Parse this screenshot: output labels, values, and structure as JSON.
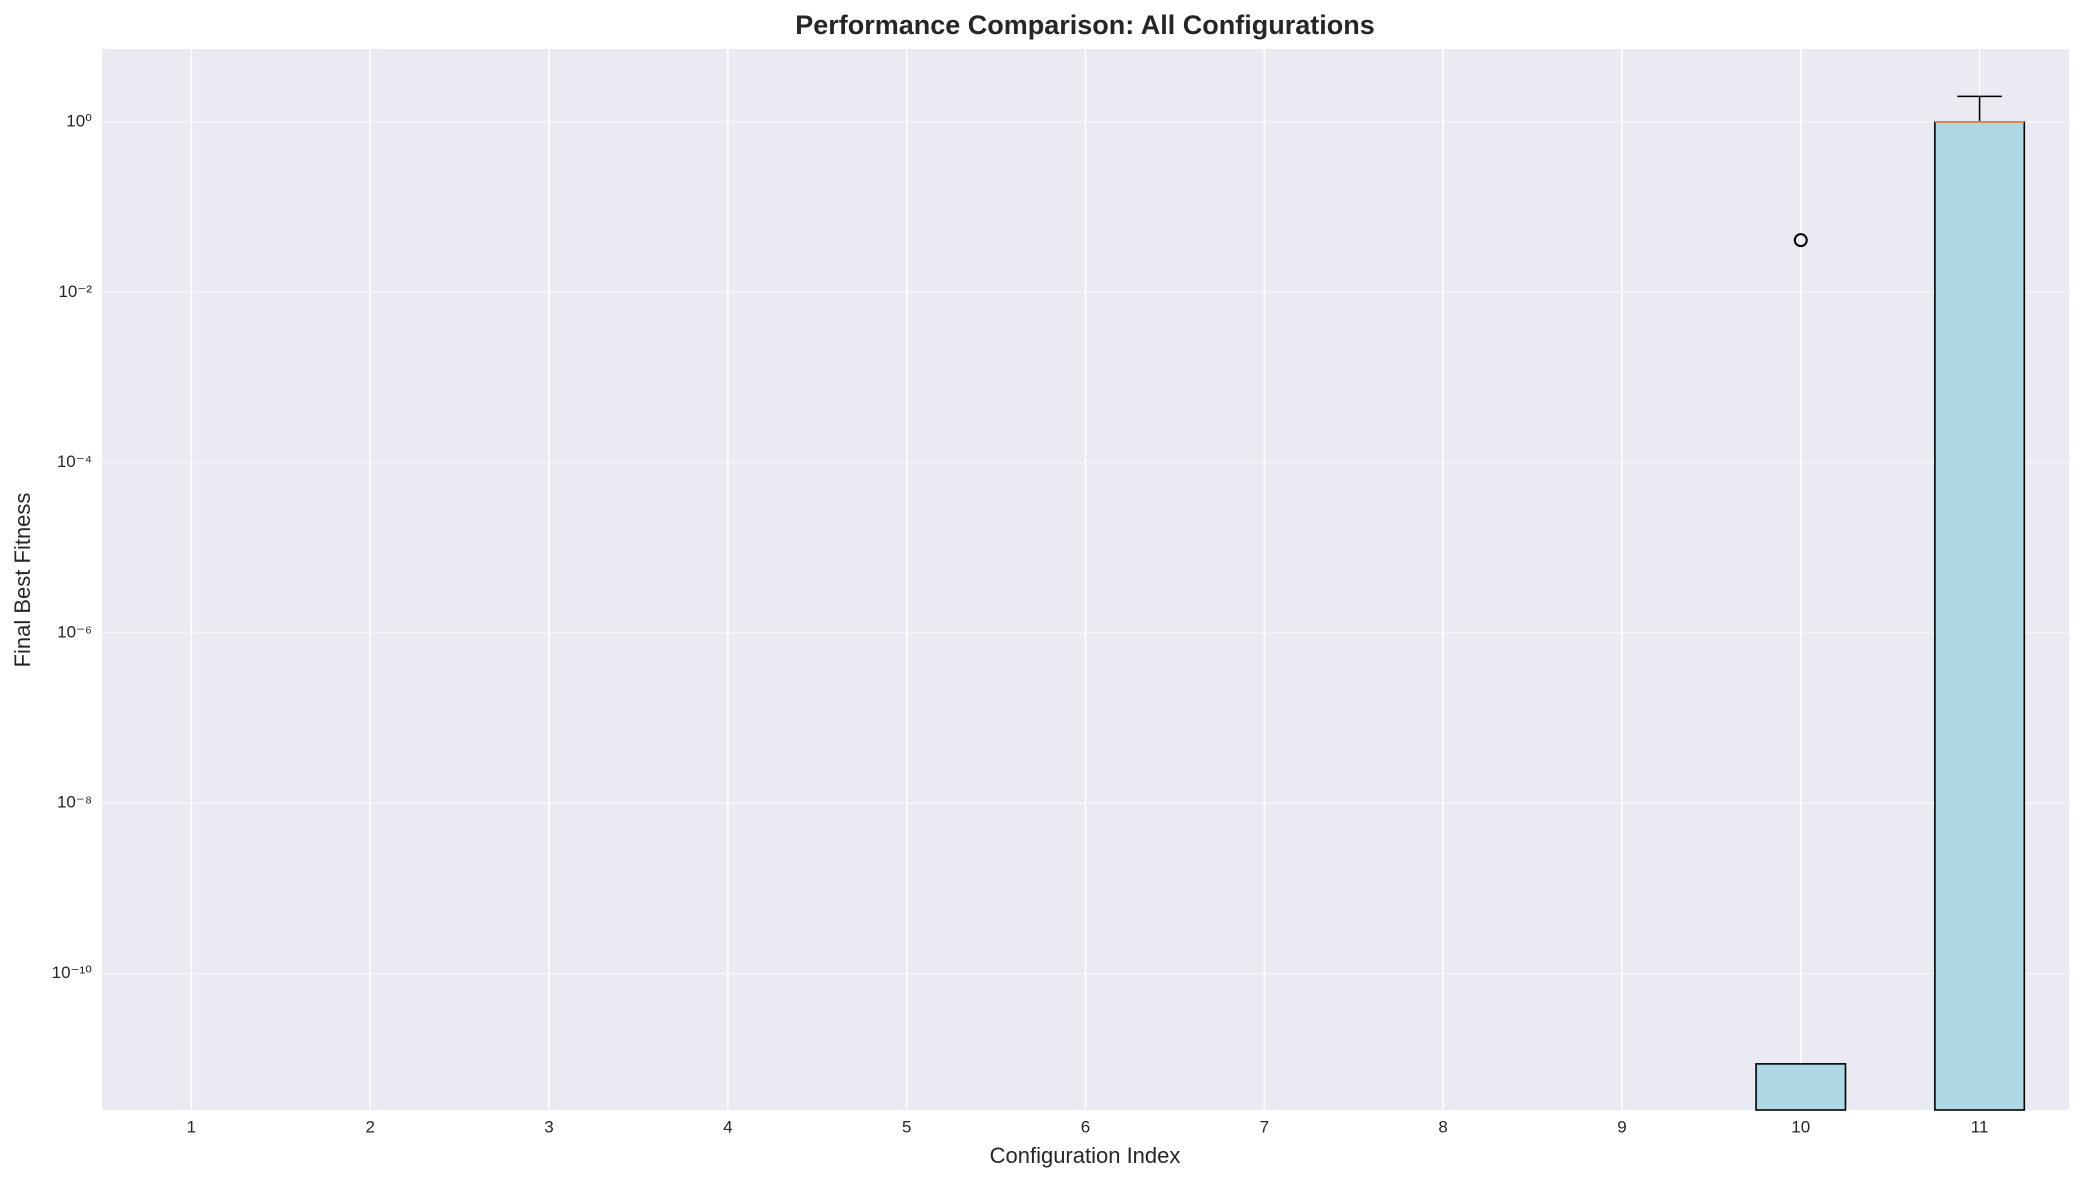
{
  "chart_data": {
    "type": "box",
    "title": "Performance Comparison: All Configurations",
    "x_label": "Configuration Index",
    "y_label": "Final Best Fitness",
    "categories": [
      "1",
      "2",
      "3",
      "4",
      "5",
      "6",
      "7",
      "8",
      "9",
      "10",
      "11"
    ],
    "boxes": [
      null,
      null,
      null,
      null,
      null,
      null,
      null,
      null,
      null,
      {
        "q3": 8.7e-12,
        "outliers": [
          0.041
        ]
      },
      {
        "q3": 1,
        "median": 1,
        "whisker_high": 2.0
      }
    ],
    "box_color": "#add8e6",
    "median_color": "#dd8452",
    "yscale": "log",
    "ylim": [
      2.5e-12,
      7.2
    ],
    "yticks": [
      {
        "value": 1e-10,
        "label": "10⁻¹⁰"
      },
      {
        "value": 1e-08,
        "label": "10⁻⁸"
      },
      {
        "value": 1e-06,
        "label": "10⁻⁶"
      },
      {
        "value": 0.0001,
        "label": "10⁻⁴"
      },
      {
        "value": 0.01,
        "label": "10⁻²"
      },
      {
        "value": 1,
        "label": "10⁰"
      }
    ],
    "grid": true
  }
}
